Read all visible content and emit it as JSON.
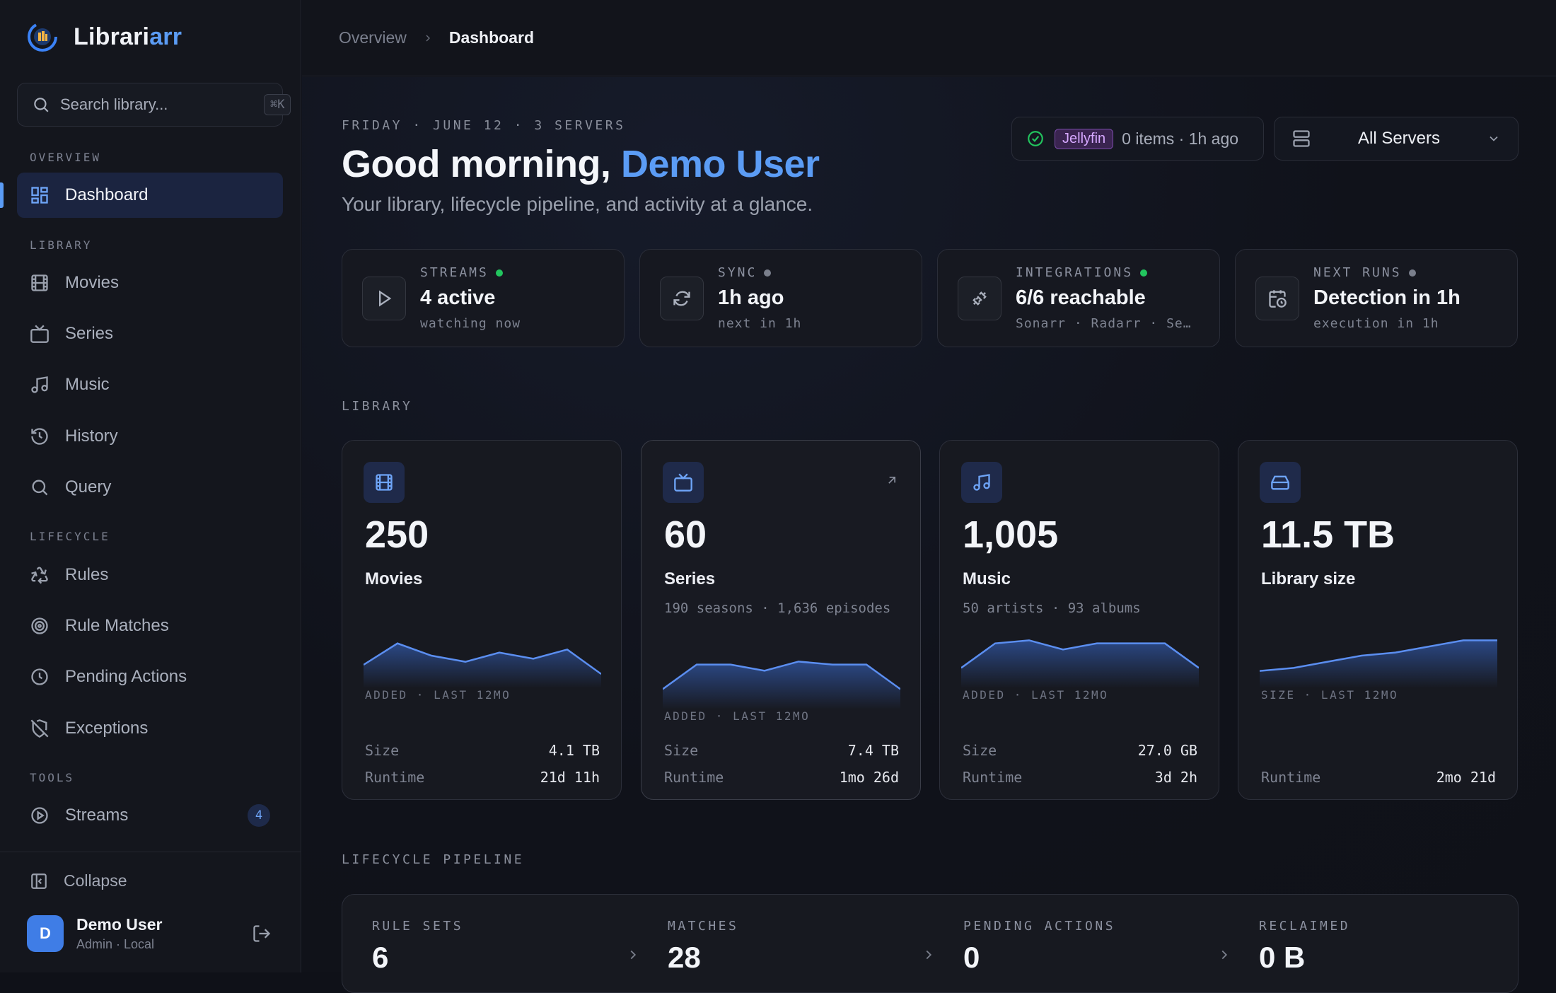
{
  "app": {
    "name_main": "Librari",
    "name_accent": "arr"
  },
  "search": {
    "placeholder": "Search library...",
    "shortcut": "⌘K"
  },
  "sidebar": {
    "sections": {
      "overview": "OVERVIEW",
      "library": "LIBRARY",
      "lifecycle": "LIFECYCLE",
      "tools": "TOOLS"
    },
    "items": {
      "dashboard": "Dashboard",
      "movies": "Movies",
      "series": "Series",
      "music": "Music",
      "history": "History",
      "query": "Query",
      "rules": "Rules",
      "rule_matches": "Rule Matches",
      "pending_actions": "Pending Actions",
      "exceptions": "Exceptions",
      "streams": "Streams"
    },
    "streams_badge": "4",
    "collapse": "Collapse"
  },
  "user": {
    "initial": "D",
    "name": "Demo User",
    "role": "Admin · Local"
  },
  "breadcrumb": {
    "parent": "Overview",
    "current": "Dashboard"
  },
  "header": {
    "dateline": "FRIDAY · JUNE 12 · 3 SERVERS",
    "greeting": "Good morning, ",
    "greeting_name": "Demo User",
    "subtitle": "Your library, lifecycle pipeline, and activity at a glance."
  },
  "status": {
    "server_tag": "Jellyfin",
    "text": "0 items · 1h ago"
  },
  "server_select": {
    "value": "All Servers"
  },
  "stats": [
    {
      "label": "STREAMS",
      "value": "4 active",
      "sub": "watching now",
      "dot": "#22c55e"
    },
    {
      "label": "SYNC",
      "value": "1h ago",
      "sub": "next in 1h",
      "dot": "#7a7f8c"
    },
    {
      "label": "INTEGRATIONS",
      "value": "6/6 reachable",
      "sub": "Sonarr · Radarr · Se…",
      "dot": "#22c55e"
    },
    {
      "label": "NEXT RUNS",
      "value": "Detection in 1h",
      "sub": "execution in 1h",
      "dot": "#7a7f8c"
    }
  ],
  "sections": {
    "library": "LIBRARY",
    "pipeline": "LIFECYCLE PIPELINE"
  },
  "library": {
    "size_label": "Size",
    "runtime_label": "Runtime",
    "cards": [
      {
        "number": "250",
        "name": "Movies",
        "detail": "",
        "caption": "ADDED · LAST 12MO",
        "size": "4.1 TB",
        "runtime": "21d 11h",
        "trend": [
          3,
          10,
          6,
          4,
          7,
          5,
          8,
          0
        ]
      },
      {
        "number": "60",
        "name": "Series",
        "detail": "190 seasons · 1,636 episodes",
        "caption": "ADDED · LAST 12MO",
        "size": "7.4 TB",
        "runtime": "1mo 26d",
        "trend": [
          2,
          10,
          10,
          8,
          11,
          10,
          10,
          2
        ]
      },
      {
        "number": "1,005",
        "name": "Music",
        "detail": "50 artists · 93 albums",
        "caption": "ADDED · LAST 12MO",
        "size": "27.0 GB",
        "runtime": "3d 2h",
        "trend": [
          2,
          10,
          11,
          8,
          10,
          10,
          10,
          2
        ]
      },
      {
        "number": "11.5 TB",
        "name": "Library size",
        "detail": "",
        "caption": "SIZE · LAST 12MO",
        "size": "",
        "runtime": "2mo 21d",
        "trend": [
          1,
          2,
          4,
          6,
          7,
          9,
          11,
          11
        ]
      }
    ]
  },
  "pipeline": [
    {
      "label": "RULE SETS",
      "value": "6"
    },
    {
      "label": "MATCHES",
      "value": "28"
    },
    {
      "label": "PENDING ACTIONS",
      "value": "0"
    },
    {
      "label": "RECLAIMED",
      "value": "0 B"
    }
  ],
  "colors": {
    "accent": "#5b9cf5",
    "ok": "#22c55e",
    "jellyfin": "#d6a8ff"
  }
}
